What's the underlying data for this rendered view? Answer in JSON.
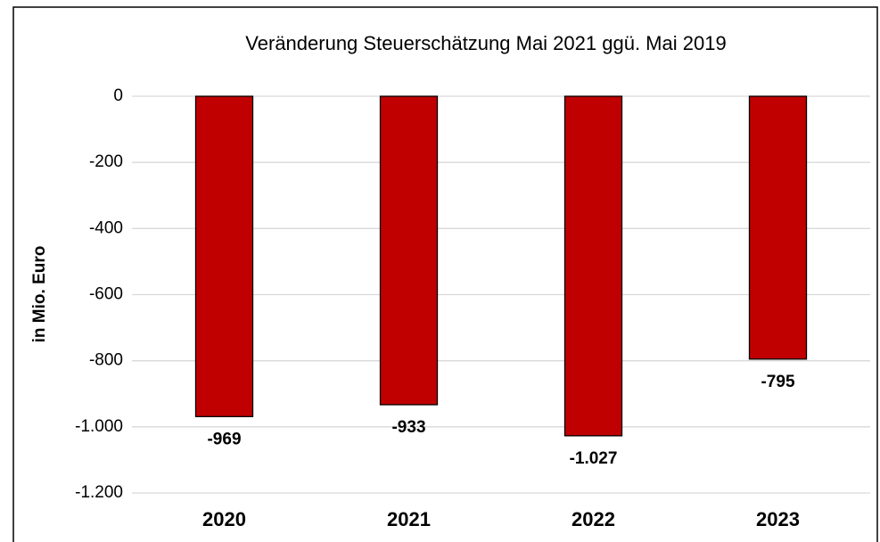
{
  "chart_data": {
    "type": "bar",
    "title": "Veränderung Steuerschätzung Mai 2021 ggü. Mai 2019",
    "y_label": "in Mio. Euro",
    "categories": [
      "2020",
      "2021",
      "2022",
      "2023"
    ],
    "values": [
      -969,
      -933,
      -1027,
      -795
    ],
    "value_labels": [
      "-969",
      "-933",
      "-1.027",
      "-795"
    ],
    "color": "#c00000",
    "ylim": [
      -1200,
      0
    ],
    "yticks": [
      0,
      -200,
      -400,
      -600,
      -800,
      {
        "value": -1000,
        "label": "-1.000"
      },
      {
        "value": -1200,
        "label": "-1.200"
      }
    ],
    "grid": true
  }
}
